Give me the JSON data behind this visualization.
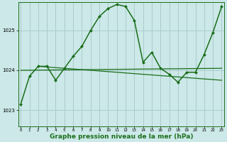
{
  "bg_color": "#cce8e8",
  "grid_color": "#aacccc",
  "line_color": "#1a6e1a",
  "title": "Graphe pression niveau de la mer (hPa)",
  "title_fontsize": 6.5,
  "ylabel_labels": [
    "1023",
    "1024",
    "1025"
  ],
  "ylim": [
    1022.6,
    1025.7
  ],
  "xlim": [
    -0.3,
    23.3
  ],
  "xticks": [
    0,
    1,
    2,
    3,
    4,
    5,
    6,
    7,
    8,
    9,
    10,
    11,
    12,
    13,
    14,
    15,
    16,
    17,
    18,
    19,
    20,
    21,
    22,
    23
  ],
  "yticks": [
    1023,
    1024,
    1025
  ],
  "series": [
    {
      "x": [
        0,
        1,
        2,
        3,
        4,
        5,
        6,
        7,
        8,
        9,
        10,
        11,
        12,
        13,
        14,
        15,
        16,
        17,
        18,
        19,
        20,
        21,
        22,
        23
      ],
      "y": [
        1023.15,
        1023.85,
        1024.1,
        1024.1,
        1023.75,
        1024.05,
        1024.35,
        1024.6,
        1025.0,
        1025.35,
        1025.55,
        1025.65,
        1025.6,
        1025.25,
        1024.2,
        1024.45,
        1024.05,
        1023.9,
        1023.7,
        1023.95,
        1023.95,
        1024.4,
        1024.95,
        1025.6
      ],
      "linewidth": 1.1,
      "marker": "D",
      "markersize": 2.0
    },
    {
      "x": [
        0,
        23
      ],
      "y": [
        1024.0,
        1024.05
      ],
      "linewidth": 0.9,
      "marker": null
    },
    {
      "x": [
        2,
        23
      ],
      "y": [
        1024.1,
        1023.75
      ],
      "linewidth": 0.9,
      "marker": null
    }
  ]
}
